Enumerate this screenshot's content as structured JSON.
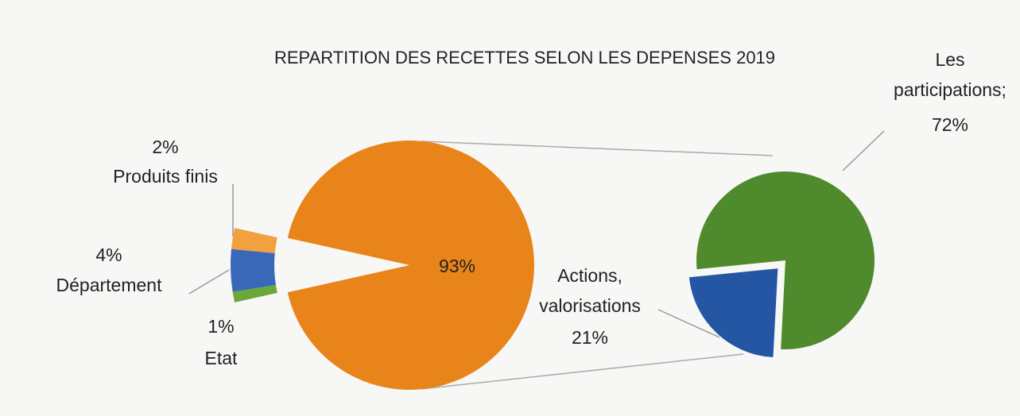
{
  "chart_data": {
    "type": "pie-of-pie",
    "title": "REPARTITION DES RECETTES SELON LES DEPENSES 2019",
    "main": {
      "categories": [
        null,
        "Produits finis",
        "Département",
        "Etat"
      ],
      "values": [
        93,
        2,
        4,
        1
      ],
      "value_labels": [
        "93%",
        "2%",
        "4%",
        "1%"
      ],
      "colors": [
        "#e8841a",
        "#f2a040",
        "#3a68b8",
        "#6aa83c"
      ]
    },
    "secondary": {
      "categories": [
        "Les participations;",
        "Actions, valorisations"
      ],
      "values": [
        72,
        21
      ],
      "value_labels": [
        "72%",
        "21%"
      ],
      "colors": [
        "#4f8a2c",
        "#2456a4"
      ]
    }
  }
}
